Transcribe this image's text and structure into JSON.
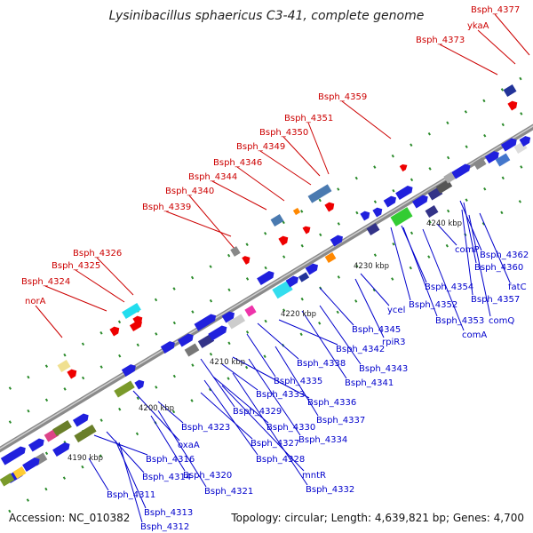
{
  "title": "Lysinibacillus sphaericus C3-41, complete genome",
  "accession": "Accession: NC_010382",
  "topology": "Topology: circular; Length: 4,639,821 bp; Genes: 4,700",
  "scale_labels": [
    "4190 kbp",
    "4200 kbp",
    "4210 kbp",
    "4220 kbp",
    "4230 kbp",
    "4240 kbp"
  ],
  "upper_genes": [
    "norA",
    "Bsph_4324",
    "Bsph_4325",
    "Bsph_4326",
    "Bsph_4339",
    "Bsph_4340",
    "Bsph_4344",
    "Bsph_4346",
    "Bsph_4349",
    "Bsph_4350",
    "Bsph_4351",
    "Bsph_4359",
    "Bsph_4373",
    "ykaA",
    "Bsph_4377"
  ],
  "lower_genes": [
    "Bsph_4311",
    "Bsph_4312",
    "Bsph_4313",
    "Bsph_4314",
    "Bsph_4316",
    "Bsph_4320",
    "Bsph_4321",
    "oxaA",
    "Bsph_4323",
    "Bsph_4327",
    "Bsph_4328",
    "mntR",
    "Bsph_4329",
    "Bsph_4330",
    "Bsph_4332",
    "Bsph_4333",
    "Bsph_4334",
    "Bsph_4335",
    "Bsph_4336",
    "Bsph_4337",
    "Bsph_4338",
    "Bsph_4341",
    "Bsph_4342",
    "Bsph_4343",
    "Bsph_4345",
    "rpiR3",
    "ycel",
    "Bsph_4352",
    "Bsph_4353",
    "comA",
    "Bsph_4354",
    "comP",
    "Bsph_4357",
    "comQ",
    "Bsph_4360",
    "fatC",
    "Bsph_4362"
  ],
  "colors": {
    "upper_label": "#cc0000",
    "lower_label": "#0000cc",
    "backbone": "#8a8a8a"
  }
}
